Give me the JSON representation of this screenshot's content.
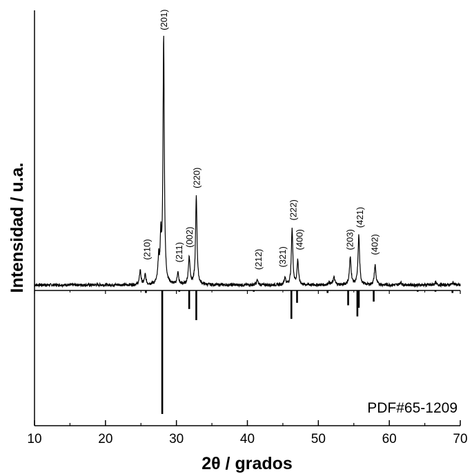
{
  "chart_data": {
    "type": "line",
    "ylabel": "Intensidad / u.a.",
    "xlabel": {
      "symbol": "2θ",
      "unit": " / grados"
    },
    "xlim": [
      10,
      70
    ],
    "x_major_ticks": [
      10,
      20,
      30,
      40,
      50,
      60,
      70
    ],
    "x_minor_step": 5,
    "reference_label": "PDF#65-1209",
    "colors": {
      "line": "#000000",
      "background": "#ffffff"
    },
    "baseline_relative": 0.05,
    "series": [
      {
        "peaks": [
          {
            "x": 24.9,
            "y": 0.06,
            "w": 0.12
          },
          {
            "x": 25.6,
            "y": 0.04,
            "w": 0.12
          },
          {
            "x": 27.5,
            "y": 0.1,
            "w": 0.12
          },
          {
            "x": 27.8,
            "y": 0.17,
            "w": 0.1
          },
          {
            "x": 28.2,
            "y": 1.0,
            "w": 0.11
          },
          {
            "x": 30.2,
            "y": 0.05,
            "w": 0.12
          },
          {
            "x": 31.8,
            "y": 0.11,
            "w": 0.14
          },
          {
            "x": 32.8,
            "y": 0.36,
            "w": 0.12
          },
          {
            "x": 41.4,
            "y": 0.02,
            "w": 0.12
          },
          {
            "x": 45.3,
            "y": 0.03,
            "w": 0.12
          },
          {
            "x": 46.3,
            "y": 0.23,
            "w": 0.12
          },
          {
            "x": 47.1,
            "y": 0.1,
            "w": 0.12
          },
          {
            "x": 51.5,
            "y": 0.01,
            "w": 0.15
          },
          {
            "x": 52.2,
            "y": 0.03,
            "w": 0.15
          },
          {
            "x": 54.5,
            "y": 0.11,
            "w": 0.14
          },
          {
            "x": 55.7,
            "y": 0.2,
            "w": 0.13
          },
          {
            "x": 58.0,
            "y": 0.08,
            "w": 0.13
          },
          {
            "x": 61.6,
            "y": 0.01,
            "w": 0.15
          },
          {
            "x": 66.5,
            "y": 0.01,
            "w": 0.15
          },
          {
            "x": 69.0,
            "y": 0.01,
            "w": 0.15
          }
        ]
      }
    ],
    "peak_labels": [
      {
        "x": 25.9,
        "y": 0.09,
        "text": "(210)"
      },
      {
        "x": 28.3,
        "y": 1.02,
        "text": "(201)"
      },
      {
        "x": 30.4,
        "y": 0.08,
        "text": "(211)"
      },
      {
        "x": 31.9,
        "y": 0.14,
        "text": "(002)"
      },
      {
        "x": 32.9,
        "y": 0.38,
        "text": "(220)"
      },
      {
        "x": 41.6,
        "y": 0.05,
        "text": "(212)"
      },
      {
        "x": 45.0,
        "y": 0.06,
        "text": "(321)"
      },
      {
        "x": 46.5,
        "y": 0.25,
        "text": "(222)"
      },
      {
        "x": 47.4,
        "y": 0.13,
        "text": "(400)"
      },
      {
        "x": 54.5,
        "y": 0.13,
        "text": "(203)"
      },
      {
        "x": 55.9,
        "y": 0.22,
        "text": "(421)"
      },
      {
        "x": 58.0,
        "y": 0.11,
        "text": "(402)"
      }
    ],
    "reference_sticks": [
      {
        "x": 25.7,
        "intensity": 0.02
      },
      {
        "x": 28.0,
        "intensity": 1.0
      },
      {
        "x": 30.4,
        "intensity": 0.01
      },
      {
        "x": 31.8,
        "intensity": 0.15
      },
      {
        "x": 32.8,
        "intensity": 0.24
      },
      {
        "x": 40.9,
        "intensity": 0.01
      },
      {
        "x": 46.2,
        "intensity": 0.23
      },
      {
        "x": 47.0,
        "intensity": 0.1
      },
      {
        "x": 51.3,
        "intensity": 0.02
      },
      {
        "x": 54.2,
        "intensity": 0.12
      },
      {
        "x": 55.5,
        "intensity": 0.21
      },
      {
        "x": 55.7,
        "intensity": 0.14
      },
      {
        "x": 57.8,
        "intensity": 0.09
      },
      {
        "x": 64.0,
        "intensity": 0.01
      },
      {
        "x": 66.5,
        "intensity": 0.01
      },
      {
        "x": 68.9,
        "intensity": 0.02
      }
    ]
  }
}
